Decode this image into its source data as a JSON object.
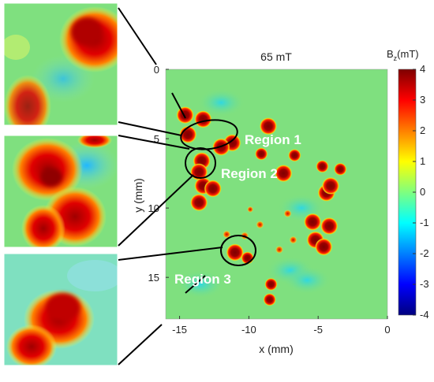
{
  "chart_data": {
    "type": "heatmap",
    "title": "65 mT",
    "xlabel": "x (mm)",
    "ylabel": "y (mm)",
    "xlim": [
      -16,
      0
    ],
    "ylim": [
      0,
      18
    ],
    "y_reversed": true,
    "x_ticks": [
      "-15",
      "-10",
      "-5",
      "0"
    ],
    "y_ticks": [
      "0",
      "5",
      "10",
      "15"
    ],
    "colorbar": {
      "label_main": "B",
      "label_sub": "z",
      "label_unit": "(mT)",
      "min": -4,
      "max": 4,
      "ticks": [
        "4",
        "3",
        "2",
        "1",
        "0",
        "-1",
        "-2",
        "-3",
        "-4"
      ],
      "colormap": "jet"
    },
    "background_value_mT": 0,
    "hotspots": [
      {
        "x": -14.6,
        "y": 3.3,
        "value": 4
      },
      {
        "x": -13.3,
        "y": 3.6,
        "value": 4
      },
      {
        "x": -14.4,
        "y": 4.7,
        "value": 4
      },
      {
        "x": -11.2,
        "y": 5.3,
        "value": 4
      },
      {
        "x": -12.0,
        "y": 5.6,
        "value": 4
      },
      {
        "x": -13.4,
        "y": 6.6,
        "value": 4
      },
      {
        "x": -13.6,
        "y": 7.4,
        "value": 4
      },
      {
        "x": -13.3,
        "y": 8.4,
        "value": 4
      },
      {
        "x": -13.6,
        "y": 9.6,
        "value": 4
      },
      {
        "x": -12.6,
        "y": 8.6,
        "value": 4
      },
      {
        "x": -8.6,
        "y": 4.1,
        "value": 4
      },
      {
        "x": -9.1,
        "y": 6.1,
        "value": 3
      },
      {
        "x": -6.7,
        "y": 6.2,
        "value": 3
      },
      {
        "x": -4.7,
        "y": 7.0,
        "value": 3
      },
      {
        "x": -3.4,
        "y": 7.2,
        "value": 3
      },
      {
        "x": -7.5,
        "y": 7.5,
        "value": 4
      },
      {
        "x": -4.4,
        "y": 8.9,
        "value": 4
      },
      {
        "x": -4.1,
        "y": 8.4,
        "value": 4
      },
      {
        "x": -5.4,
        "y": 11.0,
        "value": 4
      },
      {
        "x": -4.2,
        "y": 11.3,
        "value": 4
      },
      {
        "x": -5.2,
        "y": 12.3,
        "value": 4
      },
      {
        "x": -4.6,
        "y": 12.8,
        "value": 4
      },
      {
        "x": -11.0,
        "y": 13.2,
        "value": 4
      },
      {
        "x": -10.1,
        "y": 13.6,
        "value": 3
      },
      {
        "x": -8.4,
        "y": 15.5,
        "value": 3
      },
      {
        "x": -7.8,
        "y": 13.0,
        "value": 2
      },
      {
        "x": -8.5,
        "y": 16.6,
        "value": 3
      },
      {
        "x": -10.3,
        "y": 12.0,
        "value": 2
      },
      {
        "x": -11.6,
        "y": 11.9,
        "value": 2
      },
      {
        "x": -7.2,
        "y": 10.4,
        "value": 2
      },
      {
        "x": -9.2,
        "y": 11.2,
        "value": 2
      },
      {
        "x": -6.8,
        "y": 12.3,
        "value": 2
      },
      {
        "x": -9.9,
        "y": 10.1,
        "value": 1
      }
    ],
    "lows": [
      {
        "x": -12.0,
        "y": 2.4,
        "value": -1
      },
      {
        "x": -7.0,
        "y": 14.5,
        "value": -1
      },
      {
        "x": -5.8,
        "y": 15.2,
        "value": -1
      },
      {
        "x": -13.5,
        "y": 15.5,
        "value": -1
      },
      {
        "x": -6.2,
        "y": 10.0,
        "value": -1
      }
    ]
  },
  "annotations": {
    "region1": "Region 1",
    "region2": "Region 2",
    "region3": "Region 3"
  },
  "colors": {
    "background_field": "#7fe07f",
    "ellipse_stroke": "#000000",
    "annotation_text": "#ffffff"
  }
}
